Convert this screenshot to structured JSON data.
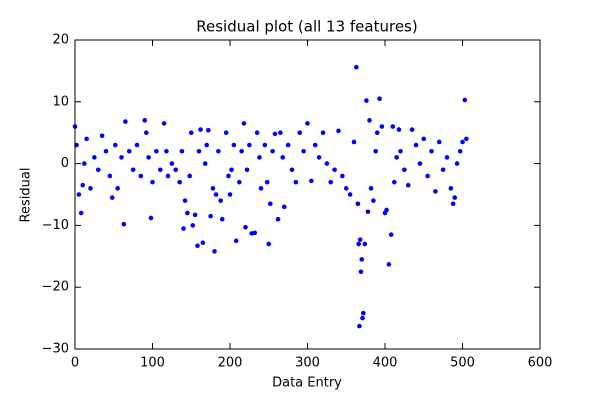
{
  "chart_data": {
    "type": "scatter",
    "title": "Residual plot (all 13 features)",
    "x_label": "Data Entry",
    "y_label": "Residual",
    "color": "#0000ff",
    "xlim": [
      0,
      600
    ],
    "ylim": [
      -30,
      20
    ],
    "xticks": [
      0,
      100,
      200,
      300,
      400,
      500,
      600
    ],
    "yticks": [
      {
        "value": -30,
        "label": "−30"
      },
      {
        "value": -20,
        "label": "−20"
      },
      {
        "value": -10,
        "label": "−10"
      },
      0,
      10,
      20
    ],
    "x": [
      0,
      2,
      5,
      8,
      10,
      12,
      15,
      20,
      25,
      30,
      35,
      40,
      45,
      48,
      52,
      55,
      60,
      63,
      65,
      70,
      75,
      80,
      85,
      90,
      92,
      95,
      98,
      100,
      105,
      110,
      115,
      118,
      120,
      125,
      130,
      135,
      138,
      140,
      142,
      145,
      148,
      150,
      152,
      155,
      158,
      160,
      162,
      165,
      168,
      170,
      172,
      175,
      178,
      180,
      182,
      185,
      188,
      190,
      195,
      198,
      200,
      202,
      205,
      208,
      212,
      215,
      218,
      220,
      222,
      225,
      228,
      232,
      235,
      238,
      240,
      245,
      248,
      250,
      252,
      255,
      258,
      262,
      265,
      268,
      270,
      275,
      280,
      285,
      290,
      295,
      300,
      305,
      310,
      315,
      320,
      325,
      330,
      335,
      340,
      345,
      350,
      355,
      360,
      363,
      365,
      366,
      367,
      368,
      369,
      370,
      371,
      372,
      374,
      376,
      378,
      380,
      382,
      385,
      388,
      390,
      393,
      396,
      400,
      402,
      405,
      408,
      410,
      412,
      415,
      418,
      420,
      425,
      430,
      435,
      440,
      445,
      450,
      455,
      460,
      465,
      470,
      475,
      480,
      485,
      488,
      490,
      493,
      497,
      500,
      503,
      505
    ],
    "y": [
      6,
      3,
      -5,
      -8,
      -3.5,
      0,
      4,
      -4,
      1,
      -1,
      4.5,
      2,
      -2,
      -5.5,
      3,
      -4,
      1,
      -9.8,
      6.8,
      2,
      -1,
      3,
      -2,
      7,
      5,
      1,
      -8.8,
      -3,
      2,
      -1,
      6.5,
      2,
      -2,
      0,
      -1,
      -3,
      2,
      -10.5,
      -6,
      -8,
      -2,
      5,
      -10,
      -8.3,
      -13.3,
      2,
      5.5,
      -12.8,
      0,
      3,
      5.4,
      -8.5,
      -4,
      -14.2,
      -5,
      2,
      -6,
      -9,
      5,
      -2,
      -5,
      -1,
      3,
      -12.5,
      -3,
      2,
      6.5,
      -10.3,
      -1,
      3,
      -11.3,
      -11.2,
      5,
      1,
      -4,
      3,
      -3,
      -13,
      -6.5,
      2,
      4.8,
      -9,
      5,
      1,
      -7,
      3,
      -1,
      -3,
      5,
      2,
      6.5,
      -2.8,
      3,
      1,
      5,
      0,
      -3,
      -1,
      5.3,
      -2,
      -4,
      -5,
      3.5,
      15.6,
      -6.5,
      -13,
      -26.3,
      -12.3,
      -17.5,
      -15.5,
      -25,
      -24.2,
      -13,
      10.2,
      -7.8,
      7,
      -4,
      -6,
      2,
      5,
      10.5,
      6,
      -8,
      -7.5,
      -16.3,
      -11.5,
      6,
      -3,
      1,
      5.5,
      2,
      -1,
      -3.5,
      5.5,
      3,
      0,
      4,
      -2,
      2,
      -4.5,
      3.5,
      -1,
      1,
      -4,
      -6.5,
      -5.5,
      0,
      2,
      3.5,
      10.3,
      4
    ]
  }
}
